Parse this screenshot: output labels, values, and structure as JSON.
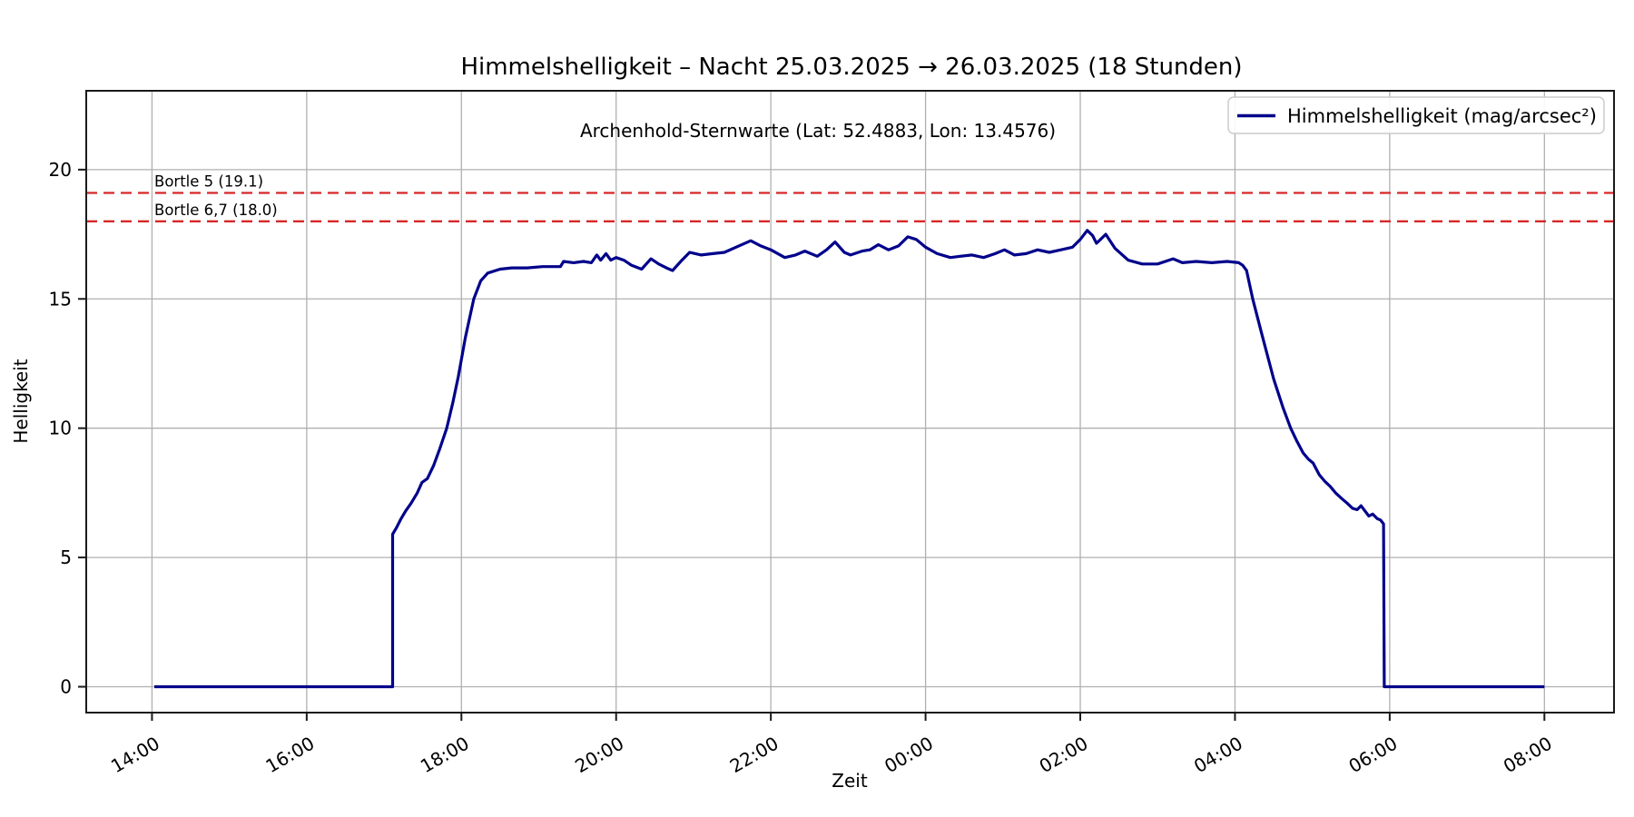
{
  "chart_data": {
    "type": "line",
    "title": "Himmelshelligkeit – Nacht 25.03.2025 → 26.03.2025 (18 Stunden)",
    "subtitle": "Archenhold-Sternwarte (Lat: 52.4883, Lon: 13.4576)",
    "xlabel": "Zeit",
    "ylabel": "Helligkeit",
    "grid": true,
    "x_unit": "hours after 14:00 on 25.03.2025",
    "xlim": [
      -0.85,
      18.9
    ],
    "ylim": [
      -1,
      23.05
    ],
    "x_ticks": [
      {
        "t": 0,
        "label": "14:00"
      },
      {
        "t": 2,
        "label": "16:00"
      },
      {
        "t": 4,
        "label": "18:00"
      },
      {
        "t": 6,
        "label": "20:00"
      },
      {
        "t": 8,
        "label": "22:00"
      },
      {
        "t": 10,
        "label": "00:00"
      },
      {
        "t": 12,
        "label": "02:00"
      },
      {
        "t": 14,
        "label": "04:00"
      },
      {
        "t": 16,
        "label": "06:00"
      },
      {
        "t": 18,
        "label": "08:00"
      }
    ],
    "y_ticks": [
      0,
      5,
      10,
      15,
      20
    ],
    "thresholds": [
      {
        "label": "Bortle 5 (19.1)",
        "value": 19.1,
        "color": "#d62728",
        "style": "dashed"
      },
      {
        "label": "Bortle 6,7 (18.0)",
        "value": 18.0,
        "color": "#d62728",
        "style": "dashed"
      }
    ],
    "legend": {
      "position": "upper right",
      "entries": [
        {
          "label": "Himmelshelligkeit (mag/arcsec²)",
          "color": "#00008b"
        }
      ]
    },
    "series": [
      {
        "name": "Himmelshelligkeit (mag/arcsec²)",
        "color": "#00008b",
        "points": [
          [
            0.03,
            0
          ],
          [
            3.11,
            0
          ],
          [
            3.11,
            5.9
          ],
          [
            3.16,
            6.15
          ],
          [
            3.22,
            6.5
          ],
          [
            3.28,
            6.8
          ],
          [
            3.35,
            7.1
          ],
          [
            3.43,
            7.5
          ],
          [
            3.49,
            7.9
          ],
          [
            3.56,
            8.05
          ],
          [
            3.64,
            8.55
          ],
          [
            3.72,
            9.2
          ],
          [
            3.81,
            10.0
          ],
          [
            3.89,
            11.0
          ],
          [
            3.96,
            12.0
          ],
          [
            4.05,
            13.5
          ],
          [
            4.16,
            15.0
          ],
          [
            4.25,
            15.7
          ],
          [
            4.34,
            16.0
          ],
          [
            4.5,
            16.15
          ],
          [
            4.65,
            16.2
          ],
          [
            4.85,
            16.2
          ],
          [
            5.05,
            16.25
          ],
          [
            5.28,
            16.25
          ],
          [
            5.32,
            16.45
          ],
          [
            5.45,
            16.4
          ],
          [
            5.58,
            16.45
          ],
          [
            5.68,
            16.4
          ],
          [
            5.75,
            16.7
          ],
          [
            5.8,
            16.5
          ],
          [
            5.87,
            16.75
          ],
          [
            5.93,
            16.5
          ],
          [
            6.0,
            16.6
          ],
          [
            6.1,
            16.5
          ],
          [
            6.2,
            16.3
          ],
          [
            6.33,
            16.15
          ],
          [
            6.45,
            16.55
          ],
          [
            6.55,
            16.35
          ],
          [
            6.65,
            16.2
          ],
          [
            6.73,
            16.1
          ],
          [
            6.85,
            16.5
          ],
          [
            6.95,
            16.8
          ],
          [
            7.1,
            16.7
          ],
          [
            7.25,
            16.75
          ],
          [
            7.4,
            16.8
          ],
          [
            7.55,
            17.0
          ],
          [
            7.74,
            17.25
          ],
          [
            7.87,
            17.05
          ],
          [
            8.0,
            16.9
          ],
          [
            8.18,
            16.6
          ],
          [
            8.32,
            16.7
          ],
          [
            8.44,
            16.85
          ],
          [
            8.6,
            16.65
          ],
          [
            8.72,
            16.9
          ],
          [
            8.83,
            17.2
          ],
          [
            8.95,
            16.8
          ],
          [
            9.03,
            16.7
          ],
          [
            9.18,
            16.85
          ],
          [
            9.28,
            16.9
          ],
          [
            9.39,
            17.1
          ],
          [
            9.52,
            16.9
          ],
          [
            9.65,
            17.05
          ],
          [
            9.77,
            17.4
          ],
          [
            9.88,
            17.3
          ],
          [
            10.0,
            17.0
          ],
          [
            10.15,
            16.75
          ],
          [
            10.32,
            16.6
          ],
          [
            10.45,
            16.65
          ],
          [
            10.6,
            16.7
          ],
          [
            10.75,
            16.6
          ],
          [
            10.9,
            16.75
          ],
          [
            11.02,
            16.9
          ],
          [
            11.15,
            16.7
          ],
          [
            11.3,
            16.75
          ],
          [
            11.45,
            16.9
          ],
          [
            11.6,
            16.8
          ],
          [
            11.75,
            16.9
          ],
          [
            11.9,
            17.0
          ],
          [
            12.0,
            17.3
          ],
          [
            12.09,
            17.65
          ],
          [
            12.16,
            17.45
          ],
          [
            12.21,
            17.15
          ],
          [
            12.33,
            17.5
          ],
          [
            12.45,
            16.95
          ],
          [
            12.62,
            16.5
          ],
          [
            12.8,
            16.35
          ],
          [
            13.0,
            16.35
          ],
          [
            13.2,
            16.55
          ],
          [
            13.32,
            16.4
          ],
          [
            13.5,
            16.45
          ],
          [
            13.7,
            16.4
          ],
          [
            13.9,
            16.45
          ],
          [
            14.05,
            16.4
          ],
          [
            14.1,
            16.3
          ],
          [
            14.15,
            16.1
          ],
          [
            14.23,
            15.0
          ],
          [
            14.35,
            13.6
          ],
          [
            14.5,
            11.9
          ],
          [
            14.62,
            10.8
          ],
          [
            14.72,
            10.0
          ],
          [
            14.8,
            9.5
          ],
          [
            14.88,
            9.05
          ],
          [
            14.95,
            8.8
          ],
          [
            15.01,
            8.65
          ],
          [
            15.09,
            8.2
          ],
          [
            15.16,
            7.95
          ],
          [
            15.23,
            7.75
          ],
          [
            15.3,
            7.5
          ],
          [
            15.38,
            7.28
          ],
          [
            15.45,
            7.1
          ],
          [
            15.52,
            6.9
          ],
          [
            15.58,
            6.85
          ],
          [
            15.63,
            7.0
          ],
          [
            15.68,
            6.8
          ],
          [
            15.73,
            6.6
          ],
          [
            15.78,
            6.68
          ],
          [
            15.84,
            6.5
          ],
          [
            15.88,
            6.45
          ],
          [
            15.92,
            6.3
          ],
          [
            15.93,
            0
          ],
          [
            18.0,
            0
          ]
        ]
      }
    ],
    "colors": {
      "line": "#00008b",
      "threshold": "#d62728",
      "grid": "#b0b0b0",
      "spine": "#1a1a1a",
      "background": "#ffffff"
    }
  }
}
